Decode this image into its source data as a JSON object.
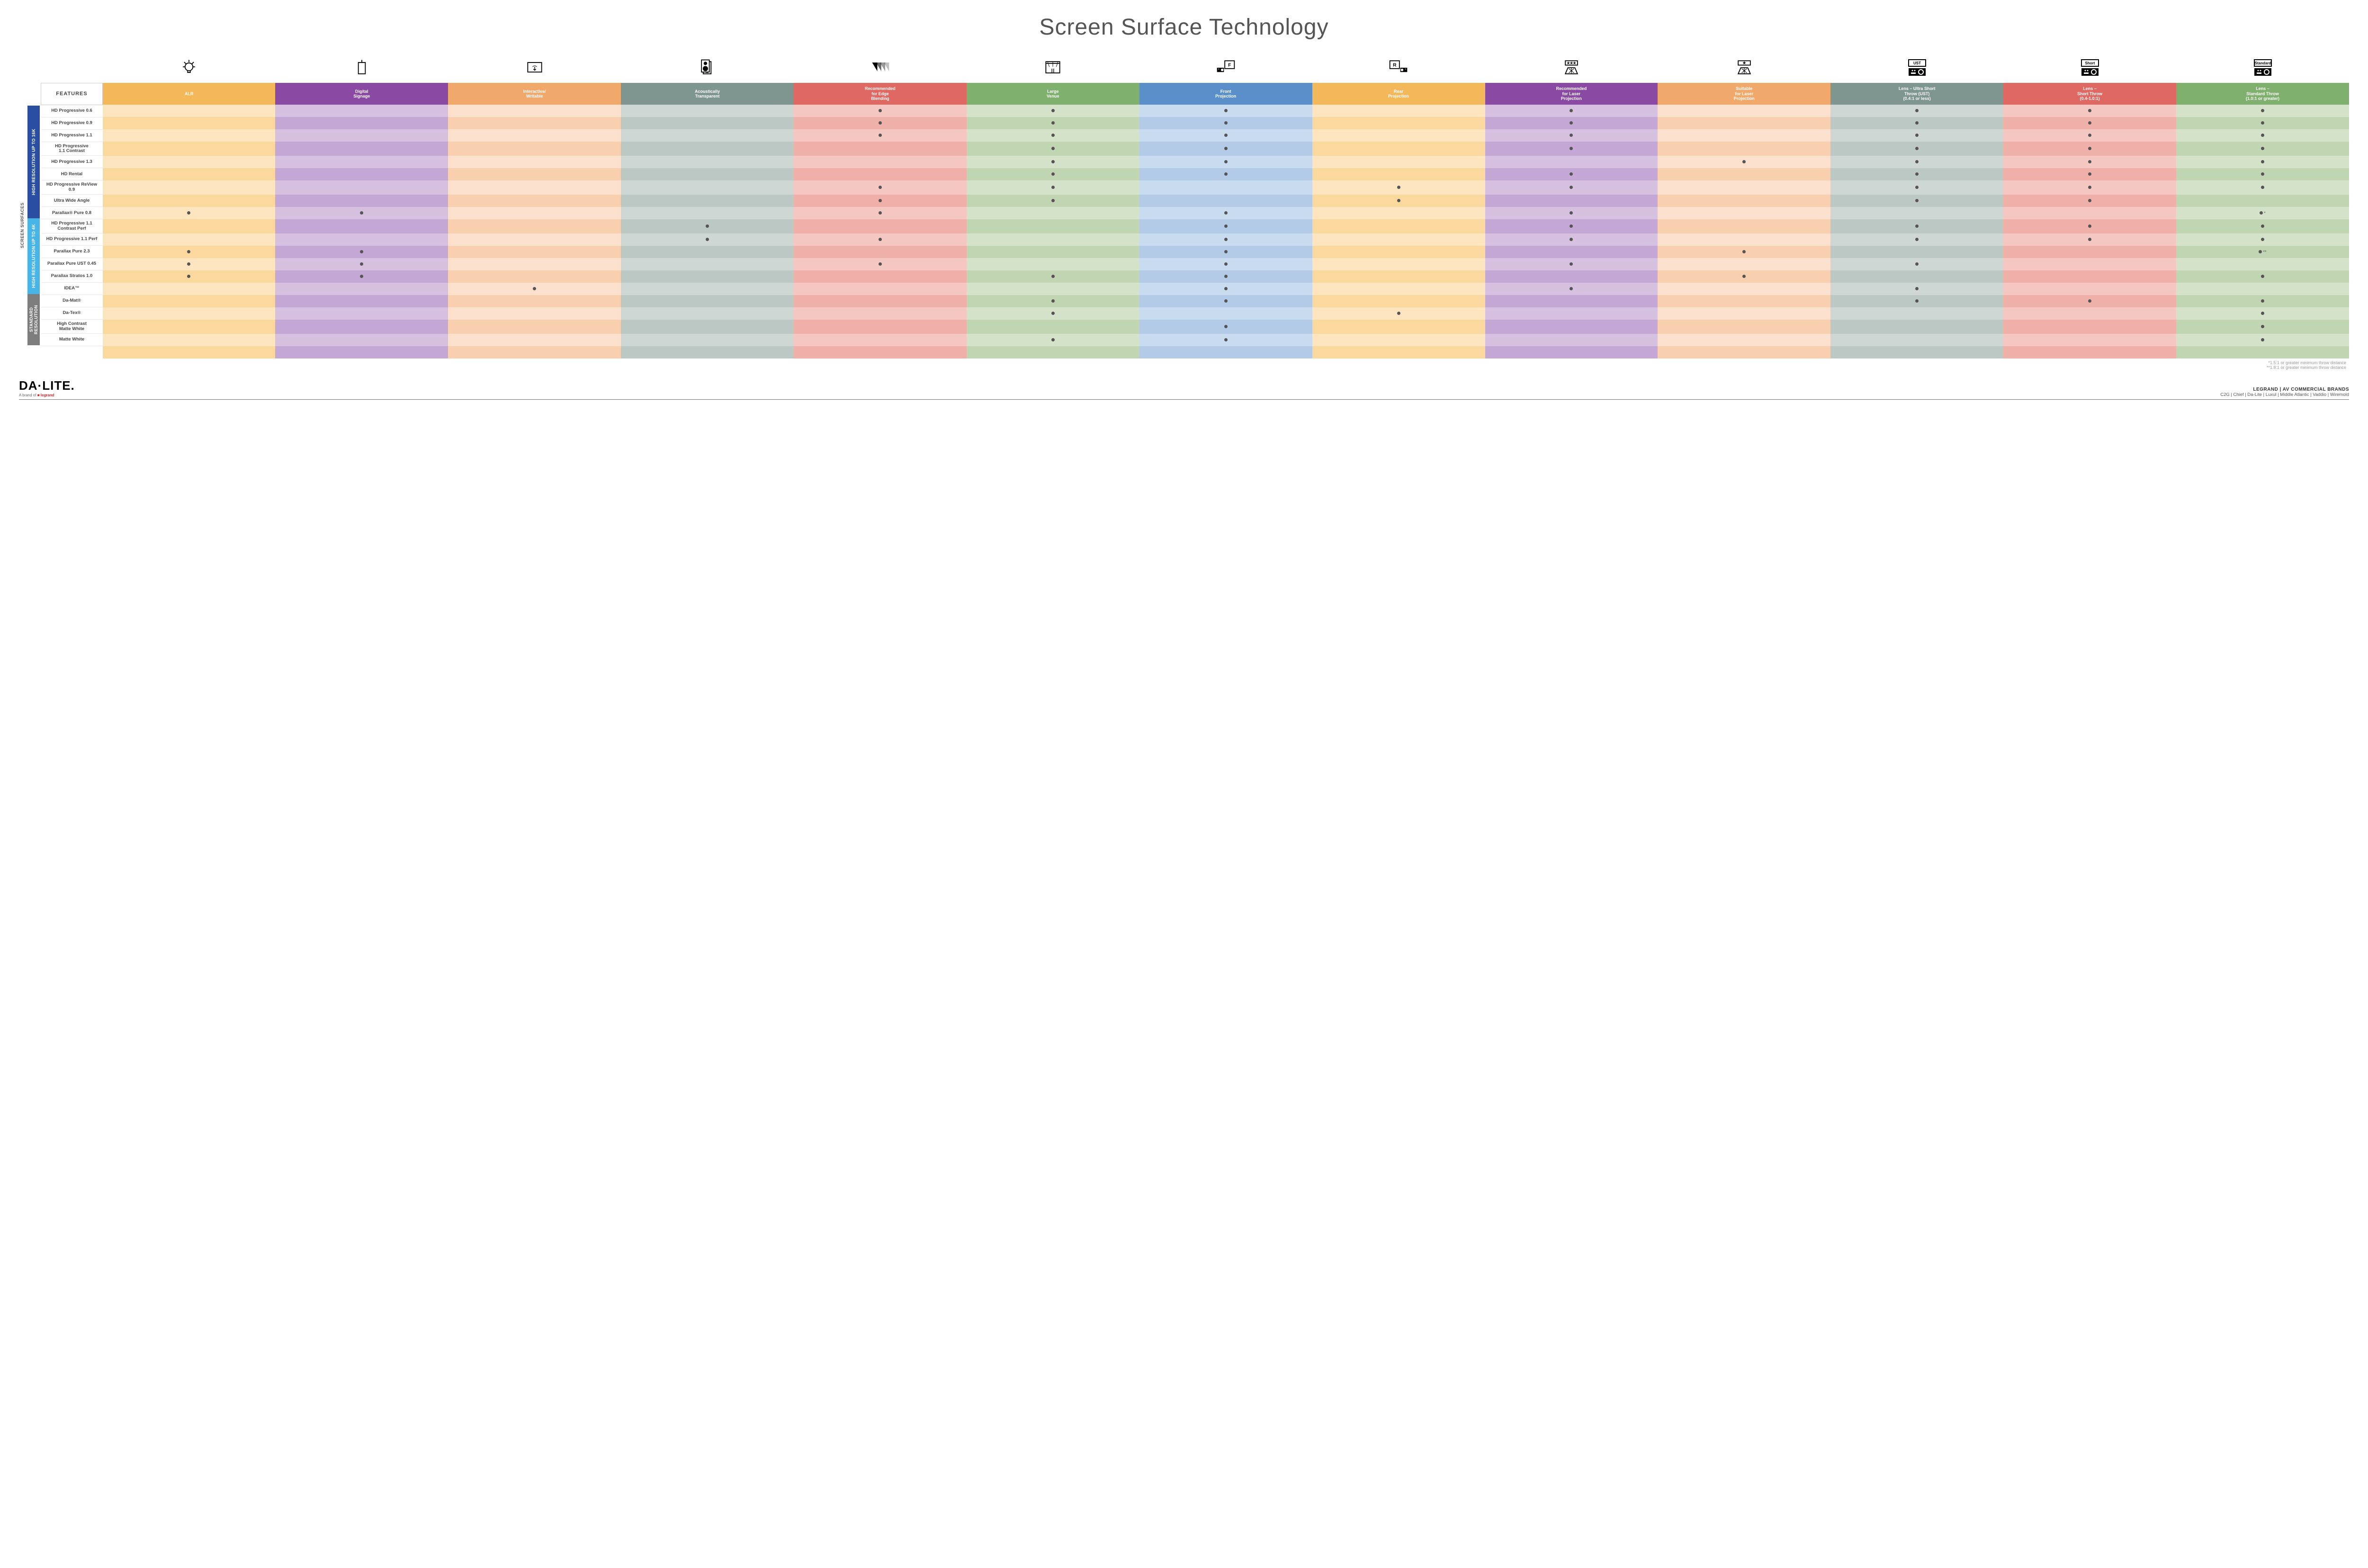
{
  "title": "Screen Surface Technology",
  "columns": [
    {
      "key": "alr",
      "label": "ALR",
      "color": "#f3b85a",
      "icon": "bulb"
    },
    {
      "key": "signage",
      "label": "Digital\nSignage",
      "color": "#8a4aa3",
      "icon": "signage"
    },
    {
      "key": "interactive",
      "label": "Interactive/\nWritable",
      "color": "#f0a96b",
      "icon": "touch"
    },
    {
      "key": "acoustic",
      "label": "Acoustically\nTransparent",
      "color": "#7f9590",
      "icon": "speaker"
    },
    {
      "key": "edge",
      "label": "Recommended\nfor Edge\nBlending",
      "color": "#e06862",
      "icon": "blend"
    },
    {
      "key": "venue",
      "label": "Large\nVenue",
      "color": "#7fb06e",
      "icon": "venue"
    },
    {
      "key": "front",
      "label": "Front\nProjection",
      "color": "#5a8fc9",
      "icon": "front"
    },
    {
      "key": "rear",
      "label": "Rear\nProjection",
      "color": "#f3b85a",
      "icon": "rear"
    },
    {
      "key": "reclaser",
      "label": "Recommended\nfor Laser\nProjection",
      "color": "#8a4aa3",
      "icon": "laser3"
    },
    {
      "key": "suitlaser",
      "label": "Suitable\nfor Laser\nProjection",
      "color": "#f0a96b",
      "icon": "laser1"
    },
    {
      "key": "ust",
      "label": "Lens – Ultra Short\nThrow (UST)\n(0.4:1 or less)",
      "color": "#7f9590",
      "icon": "proj-ust"
    },
    {
      "key": "short",
      "label": "Lens –\nShort Throw\n(0.4-1.0:1)",
      "color": "#e06862",
      "icon": "proj-short"
    },
    {
      "key": "std",
      "label": "Lens –\nStandard Throw\n(1.0:1 or greater)",
      "color": "#7fb06e",
      "icon": "proj-std"
    }
  ],
  "feature_header": "FEATURES",
  "side_label": "SCREEN SURFACES",
  "categories": [
    {
      "key": "hr16k",
      "label": "HIGH RESOLUTION UP TO 16K",
      "color": "#2a4fa0",
      "rows": [
        {
          "name": "HD Progressive 0.6",
          "dots": {
            "edge": 1,
            "venue": 1,
            "front": 1,
            "reclaser": 1,
            "ust": 1,
            "short": 1,
            "std": 1
          }
        },
        {
          "name": "HD Progressive 0.9",
          "dots": {
            "edge": 1,
            "venue": 1,
            "front": 1,
            "reclaser": 1,
            "ust": 1,
            "short": 1,
            "std": 1
          }
        },
        {
          "name": "HD Progressive 1.1",
          "dots": {
            "edge": 1,
            "venue": 1,
            "front": 1,
            "reclaser": 1,
            "ust": 1,
            "short": 1,
            "std": 1
          }
        },
        {
          "name": "HD Progressive\n1.1 Contrast",
          "dots": {
            "venue": 1,
            "front": 1,
            "reclaser": 1,
            "ust": 1,
            "short": 1,
            "std": 1
          }
        },
        {
          "name": "HD Progressive 1.3",
          "dots": {
            "venue": 1,
            "front": 1,
            "suitlaser": 1,
            "ust": 1,
            "short": 1,
            "std": 1
          }
        },
        {
          "name": "HD Rental",
          "dots": {
            "venue": 1,
            "front": 1,
            "reclaser": 1,
            "ust": 1,
            "short": 1,
            "std": 1
          }
        },
        {
          "name": "HD Progressive ReView 0.9",
          "dots": {
            "edge": 1,
            "venue": 1,
            "rear": 1,
            "reclaser": 1,
            "ust": 1,
            "short": 1,
            "std": 1
          }
        },
        {
          "name": "Ultra Wide Angle",
          "dots": {
            "edge": 1,
            "venue": 1,
            "rear": 1,
            "ust": 1,
            "short": 1
          }
        },
        {
          "name": "Parallax® Pure 0.8",
          "dots": {
            "alr": 1,
            "signage": 1,
            "edge": 1,
            "front": 1,
            "reclaser": 1,
            "std": 1
          },
          "suffix_std": "*"
        }
      ]
    },
    {
      "key": "hr4k",
      "label": "HIGH RESOLUTION UP TO 4K",
      "color": "#49b4e6",
      "rows": [
        {
          "name": "HD Progressive 1.1\nContrast Perf",
          "dots": {
            "acoustic": 1,
            "front": 1,
            "reclaser": 1,
            "ust": 1,
            "short": 1,
            "std": 1
          }
        },
        {
          "name": "HD Progressive 1.1 Perf",
          "dots": {
            "acoustic": 1,
            "edge": 1,
            "front": 1,
            "reclaser": 1,
            "ust": 1,
            "short": 1,
            "std": 1
          }
        },
        {
          "name": "Parallax Pure 2.3",
          "dots": {
            "alr": 1,
            "signage": 1,
            "front": 1,
            "suitlaser": 1,
            "std": 1
          },
          "suffix_std": "**"
        },
        {
          "name": "Parallax Pure UST 0.45",
          "dots": {
            "alr": 1,
            "signage": 1,
            "edge": 1,
            "front": 1,
            "reclaser": 1,
            "ust": 1
          }
        },
        {
          "name": "Parallax Stratos 1.0",
          "dots": {
            "alr": 1,
            "signage": 1,
            "venue": 1,
            "front": 1,
            "suitlaser": 1,
            "std": 1
          }
        },
        {
          "name": "IDEA™",
          "dots": {
            "interactive": 1,
            "front": 1,
            "reclaser": 1,
            "ust": 1
          }
        }
      ]
    },
    {
      "key": "stdres",
      "label": "STANDARD\nRESOLUTION",
      "color": "#7d7d7d",
      "rows": [
        {
          "name": "Da-Mat®",
          "dots": {
            "venue": 1,
            "front": 1,
            "ust": 1,
            "short": 1,
            "std": 1
          }
        },
        {
          "name": "Da-Tex®",
          "dots": {
            "venue": 1,
            "rear": 1,
            "std": 1
          }
        },
        {
          "name": "High Contrast\nMatte White",
          "dots": {
            "front": 1,
            "std": 1
          }
        },
        {
          "name": "Matte White",
          "dots": {
            "venue": 1,
            "front": 1,
            "std": 1
          }
        }
      ]
    }
  ],
  "tints": {
    "alr": {
      "even": "#fde6bf",
      "odd": "#fbd89e"
    },
    "signage": {
      "even": "#d5c0df",
      "odd": "#c4a7d4"
    },
    "interactive": {
      "even": "#fbe1cd",
      "odd": "#f8d0b0"
    },
    "acoustic": {
      "even": "#cfd7d4",
      "odd": "#bcc8c4"
    },
    "edge": {
      "even": "#f4c7c3",
      "odd": "#efb0aa"
    },
    "venue": {
      "even": "#d3e2c9",
      "odd": "#c0d5b2"
    },
    "front": {
      "even": "#c9dbef",
      "odd": "#b3cbe6"
    },
    "rear": {
      "even": "#fde6bf",
      "odd": "#fbd89e"
    },
    "reclaser": {
      "even": "#d5c0df",
      "odd": "#c4a7d4"
    },
    "suitlaser": {
      "even": "#fbe1cd",
      "odd": "#f8d0b0"
    },
    "ust": {
      "even": "#cfd7d4",
      "odd": "#bcc8c4"
    },
    "short": {
      "even": "#f4c7c3",
      "odd": "#efb0aa"
    },
    "std": {
      "even": "#d3e2c9",
      "odd": "#c0d5b2"
    }
  },
  "footnotes": [
    "*1.5:1 or greater minimum throw distance",
    "**1.8:1 or greater minimum throw distance"
  ],
  "footer": {
    "logo": "DA·LITE.",
    "logo_sub_prefix": "A brand of ",
    "logo_sub_brand": "legrand",
    "brands_title": "LEGRAND | AV COMMERCIAL BRANDS",
    "brands": [
      "C2G",
      "Chief",
      "Da-Lite",
      "Luxul",
      "Middle Atlantic",
      "Vaddio",
      "Wiremold"
    ]
  }
}
